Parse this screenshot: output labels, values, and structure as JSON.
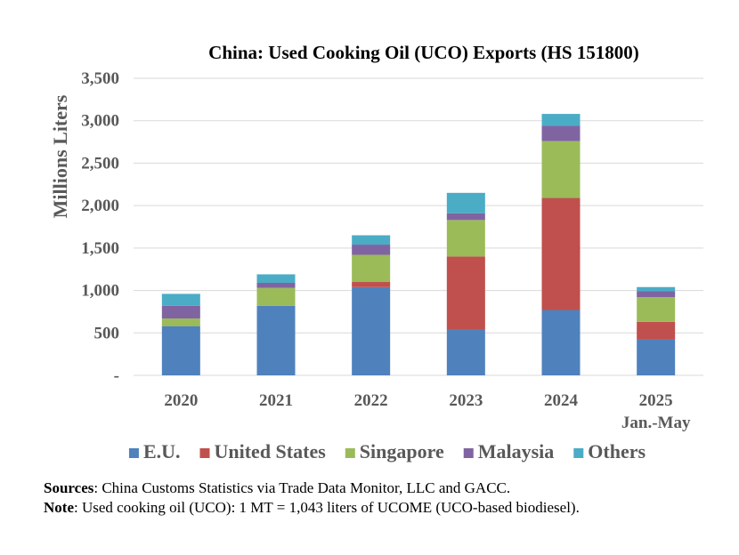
{
  "chart_data": {
    "type": "bar",
    "stacked": true,
    "title": "China: Used Cooking Oil (UCO) Exports (HS 151800)",
    "ylabel": "Millions Liters",
    "xlabel": "",
    "ylim": [
      0,
      3500
    ],
    "yticks": [
      0,
      500,
      1000,
      1500,
      2000,
      2500,
      3000,
      3500
    ],
    "ytick_labels": [
      "-",
      "500",
      "1,000",
      "1,500",
      "2,000",
      "2,500",
      "3,000",
      "3,500"
    ],
    "grid": true,
    "legend_position": "bottom",
    "categories": [
      "2020",
      "2021",
      "2022",
      "2023",
      "2024",
      "2025"
    ],
    "category_sublabels": [
      "",
      "",
      "",
      "",
      "",
      "Jan.-May"
    ],
    "series": [
      {
        "name": "E.U.",
        "color": "#4f81bd",
        "values": [
          580,
          820,
          1040,
          540,
          770,
          420
        ]
      },
      {
        "name": "United States",
        "color": "#c0504d",
        "values": [
          0,
          0,
          60,
          860,
          1320,
          210
        ]
      },
      {
        "name": "Singapore",
        "color": "#9bbb59",
        "values": [
          90,
          210,
          320,
          430,
          670,
          290
        ]
      },
      {
        "name": "Malaysia",
        "color": "#8064a2",
        "values": [
          150,
          60,
          120,
          80,
          180,
          70
        ]
      },
      {
        "name": "Others",
        "color": "#4bacc6",
        "values": [
          140,
          100,
          110,
          240,
          140,
          50
        ]
      }
    ]
  },
  "footer": {
    "sources_label": "Sources",
    "sources_text": ": China Customs Statistics via Trade Data Monitor, LLC and GACC.",
    "note_label": "Note",
    "note_text": ": Used cooking oil (UCO): 1 MT = 1,043 liters of UCOME (UCO-based biodiesel)."
  }
}
